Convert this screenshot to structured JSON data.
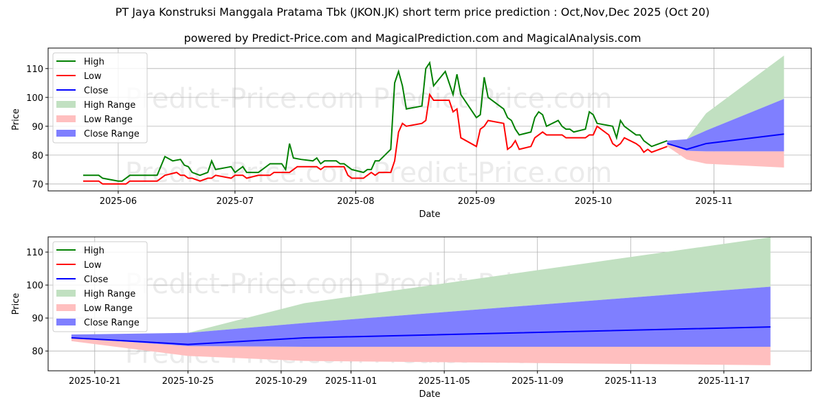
{
  "title": "PT Jaya Konstruksi Manggala Pratama Tbk (JKON.JK) short term price prediction : Oct,Nov,Dec 2025 (Oct 20)",
  "subtitle": "powered by Predict-Price.com and MagicalPrediction.com and MagicalAnalysis.com",
  "watermark": "Predict-Price.com",
  "colors": {
    "high": "#008000",
    "low": "#ff0000",
    "close": "#0000ff",
    "high_range": "#c1e0c1",
    "low_range": "#ffbfbf",
    "close_range": "#7f7fff"
  },
  "chart_data": [
    {
      "type": "line",
      "xlabel": "Date",
      "ylabel": "Price",
      "xlim": [
        "2025-05-14",
        "2025-11-26"
      ],
      "ylim": [
        67.6,
        117.1
      ],
      "grid": true,
      "legend": "top-left",
      "yticks": [
        70,
        80,
        90,
        100,
        110
      ],
      "xticks": [
        "2025-06-01",
        "2025-07-01",
        "2025-08-01",
        "2025-09-01",
        "2025-10-01",
        "2025-11-01"
      ],
      "xtick_labels": [
        "2025-06",
        "2025-07",
        "2025-08",
        "2025-09",
        "2025-10",
        "2025-11"
      ],
      "legend_entries": [
        "High",
        "Low",
        "Close",
        "High Range",
        "Low Range",
        "Close Range"
      ],
      "high": [
        [
          "2025-05-23",
          73
        ],
        [
          "2025-05-27",
          73
        ],
        [
          "2025-05-28",
          72
        ],
        [
          "2025-06-01",
          71
        ],
        [
          "2025-06-02",
          71
        ],
        [
          "2025-06-04",
          73
        ],
        [
          "2025-06-11",
          73
        ],
        [
          "2025-06-13",
          79.5
        ],
        [
          "2025-06-15",
          78
        ],
        [
          "2025-06-17",
          78.5
        ],
        [
          "2025-06-18",
          76.5
        ],
        [
          "2025-06-19",
          76
        ],
        [
          "2025-06-20",
          74
        ],
        [
          "2025-06-22",
          73
        ],
        [
          "2025-06-24",
          74
        ],
        [
          "2025-06-25",
          78
        ],
        [
          "2025-06-26",
          75
        ],
        [
          "2025-06-30",
          76
        ],
        [
          "2025-07-01",
          74
        ],
        [
          "2025-07-03",
          76
        ],
        [
          "2025-07-04",
          74
        ],
        [
          "2025-07-07",
          74
        ],
        [
          "2025-07-10",
          77
        ],
        [
          "2025-07-13",
          77
        ],
        [
          "2025-07-14",
          75
        ],
        [
          "2025-07-15",
          84
        ],
        [
          "2025-07-16",
          79
        ],
        [
          "2025-07-18",
          78.5
        ],
        [
          "2025-07-21",
          78
        ],
        [
          "2025-07-22",
          79
        ],
        [
          "2025-07-23",
          77
        ],
        [
          "2025-07-24",
          78
        ],
        [
          "2025-07-27",
          78
        ],
        [
          "2025-07-28",
          77
        ],
        [
          "2025-07-29",
          77
        ],
        [
          "2025-07-31",
          75
        ],
        [
          "2025-08-03",
          74
        ],
        [
          "2025-08-04",
          75
        ],
        [
          "2025-08-05",
          75
        ],
        [
          "2025-08-06",
          78
        ],
        [
          "2025-08-07",
          78
        ],
        [
          "2025-08-10",
          82
        ],
        [
          "2025-08-11",
          105
        ],
        [
          "2025-08-12",
          109
        ],
        [
          "2025-08-13",
          104
        ],
        [
          "2025-08-14",
          96
        ],
        [
          "2025-08-18",
          97
        ],
        [
          "2025-08-19",
          110
        ],
        [
          "2025-08-20",
          112
        ],
        [
          "2025-08-21",
          104
        ],
        [
          "2025-08-24",
          109
        ],
        [
          "2025-08-26",
          101
        ],
        [
          "2025-08-27",
          108
        ],
        [
          "2025-08-28",
          101
        ],
        [
          "2025-09-01",
          93
        ],
        [
          "2025-09-02",
          94
        ],
        [
          "2025-09-03",
          107
        ],
        [
          "2025-09-04",
          100
        ],
        [
          "2025-09-08",
          96
        ],
        [
          "2025-09-09",
          93
        ],
        [
          "2025-09-10",
          92
        ],
        [
          "2025-09-11",
          89
        ],
        [
          "2025-09-12",
          87
        ],
        [
          "2025-09-15",
          88
        ],
        [
          "2025-09-16",
          93
        ],
        [
          "2025-09-17",
          95
        ],
        [
          "2025-09-18",
          94
        ],
        [
          "2025-09-19",
          90
        ],
        [
          "2025-09-22",
          92
        ],
        [
          "2025-09-23",
          90
        ],
        [
          "2025-09-24",
          89
        ],
        [
          "2025-09-25",
          89
        ],
        [
          "2025-09-26",
          88
        ],
        [
          "2025-09-29",
          89
        ],
        [
          "2025-09-30",
          95
        ],
        [
          "2025-10-01",
          94
        ],
        [
          "2025-10-02",
          91
        ],
        [
          "2025-10-06",
          90
        ],
        [
          "2025-10-07",
          86
        ],
        [
          "2025-10-08",
          92
        ],
        [
          "2025-10-09",
          90
        ],
        [
          "2025-10-12",
          87
        ],
        [
          "2025-10-13",
          87
        ],
        [
          "2025-10-14",
          85
        ],
        [
          "2025-10-16",
          83
        ],
        [
          "2025-10-20",
          85
        ]
      ],
      "low": [
        [
          "2025-05-23",
          71
        ],
        [
          "2025-05-27",
          71
        ],
        [
          "2025-05-28",
          70
        ],
        [
          "2025-06-03",
          70
        ],
        [
          "2025-06-04",
          71
        ],
        [
          "2025-06-11",
          71
        ],
        [
          "2025-06-13",
          73
        ],
        [
          "2025-06-16",
          74
        ],
        [
          "2025-06-17",
          73
        ],
        [
          "2025-06-18",
          73
        ],
        [
          "2025-06-19",
          72
        ],
        [
          "2025-06-20",
          72
        ],
        [
          "2025-06-22",
          71
        ],
        [
          "2025-06-24",
          72
        ],
        [
          "2025-06-25",
          72
        ],
        [
          "2025-06-26",
          73
        ],
        [
          "2025-06-30",
          72
        ],
        [
          "2025-07-01",
          73
        ],
        [
          "2025-07-03",
          73
        ],
        [
          "2025-07-04",
          72
        ],
        [
          "2025-07-07",
          73
        ],
        [
          "2025-07-10",
          73
        ],
        [
          "2025-07-11",
          74
        ],
        [
          "2025-07-15",
          74
        ],
        [
          "2025-07-17",
          76
        ],
        [
          "2025-07-22",
          76
        ],
        [
          "2025-07-23",
          75
        ],
        [
          "2025-07-24",
          76
        ],
        [
          "2025-07-29",
          76
        ],
        [
          "2025-07-30",
          73
        ],
        [
          "2025-07-31",
          72
        ],
        [
          "2025-08-03",
          72
        ],
        [
          "2025-08-05",
          74
        ],
        [
          "2025-08-06",
          73
        ],
        [
          "2025-08-07",
          74
        ],
        [
          "2025-08-10",
          74
        ],
        [
          "2025-08-11",
          78
        ],
        [
          "2025-08-12",
          88
        ],
        [
          "2025-08-13",
          91
        ],
        [
          "2025-08-14",
          90
        ],
        [
          "2025-08-18",
          91
        ],
        [
          "2025-08-19",
          92
        ],
        [
          "2025-08-20",
          101
        ],
        [
          "2025-08-21",
          99
        ],
        [
          "2025-08-25",
          99
        ],
        [
          "2025-08-26",
          95
        ],
        [
          "2025-08-27",
          96
        ],
        [
          "2025-08-28",
          86
        ],
        [
          "2025-09-01",
          83
        ],
        [
          "2025-09-02",
          89
        ],
        [
          "2025-09-03",
          90
        ],
        [
          "2025-09-04",
          92
        ],
        [
          "2025-09-08",
          91
        ],
        [
          "2025-09-09",
          82
        ],
        [
          "2025-09-10",
          83
        ],
        [
          "2025-09-11",
          85
        ],
        [
          "2025-09-12",
          82
        ],
        [
          "2025-09-15",
          83
        ],
        [
          "2025-09-16",
          86
        ],
        [
          "2025-09-18",
          88
        ],
        [
          "2025-09-19",
          87
        ],
        [
          "2025-09-23",
          87
        ],
        [
          "2025-09-24",
          86
        ],
        [
          "2025-09-29",
          86
        ],
        [
          "2025-09-30",
          87
        ],
        [
          "2025-10-01",
          87
        ],
        [
          "2025-10-02",
          90
        ],
        [
          "2025-10-03",
          89
        ],
        [
          "2025-10-05",
          87
        ],
        [
          "2025-10-06",
          84
        ],
        [
          "2025-10-07",
          83
        ],
        [
          "2025-10-08",
          84
        ],
        [
          "2025-10-09",
          86
        ],
        [
          "2025-10-12",
          84
        ],
        [
          "2025-10-13",
          83
        ],
        [
          "2025-10-14",
          81
        ],
        [
          "2025-10-15",
          82
        ],
        [
          "2025-10-16",
          81
        ],
        [
          "2025-10-20",
          83
        ]
      ],
      "forecast_dates": [
        "2025-10-20",
        "2025-10-25",
        "2025-10-30",
        "2025-11-19"
      ],
      "close": [
        84,
        82,
        84,
        87.3
      ],
      "high_range": {
        "upper": [
          85,
          85.5,
          94.5,
          114.5
        ],
        "lower": [
          85,
          85.5,
          88.5,
          99.5
        ]
      },
      "close_range": {
        "upper": [
          85,
          85.5,
          88.5,
          99.5
        ],
        "lower": [
          84,
          81.5,
          81.3,
          81.3
        ]
      },
      "low_range": {
        "upper": [
          84,
          81.5,
          81.3,
          81.3
        ],
        "lower": [
          83,
          78.5,
          77,
          75.7
        ]
      }
    },
    {
      "type": "line",
      "xlabel": "Date",
      "ylabel": "Price",
      "xlim": [
        "2025-10-19",
        "2025-11-20.75"
      ],
      "ylim": [
        74,
        114.6
      ],
      "grid": true,
      "legend": "top-left",
      "yticks": [
        80,
        90,
        100,
        110
      ],
      "xticks": [
        "2025-10-21",
        "2025-10-25",
        "2025-10-29",
        "2025-11-01",
        "2025-11-05",
        "2025-11-09",
        "2025-11-13",
        "2025-11-17"
      ],
      "xtick_labels": [
        "2025-10-21",
        "2025-10-25",
        "2025-10-29",
        "2025-11-01",
        "2025-11-05",
        "2025-11-09",
        "2025-11-13",
        "2025-11-17"
      ],
      "legend_entries": [
        "High",
        "Low",
        "Close",
        "High Range",
        "Low Range",
        "Close Range"
      ]
    }
  ]
}
